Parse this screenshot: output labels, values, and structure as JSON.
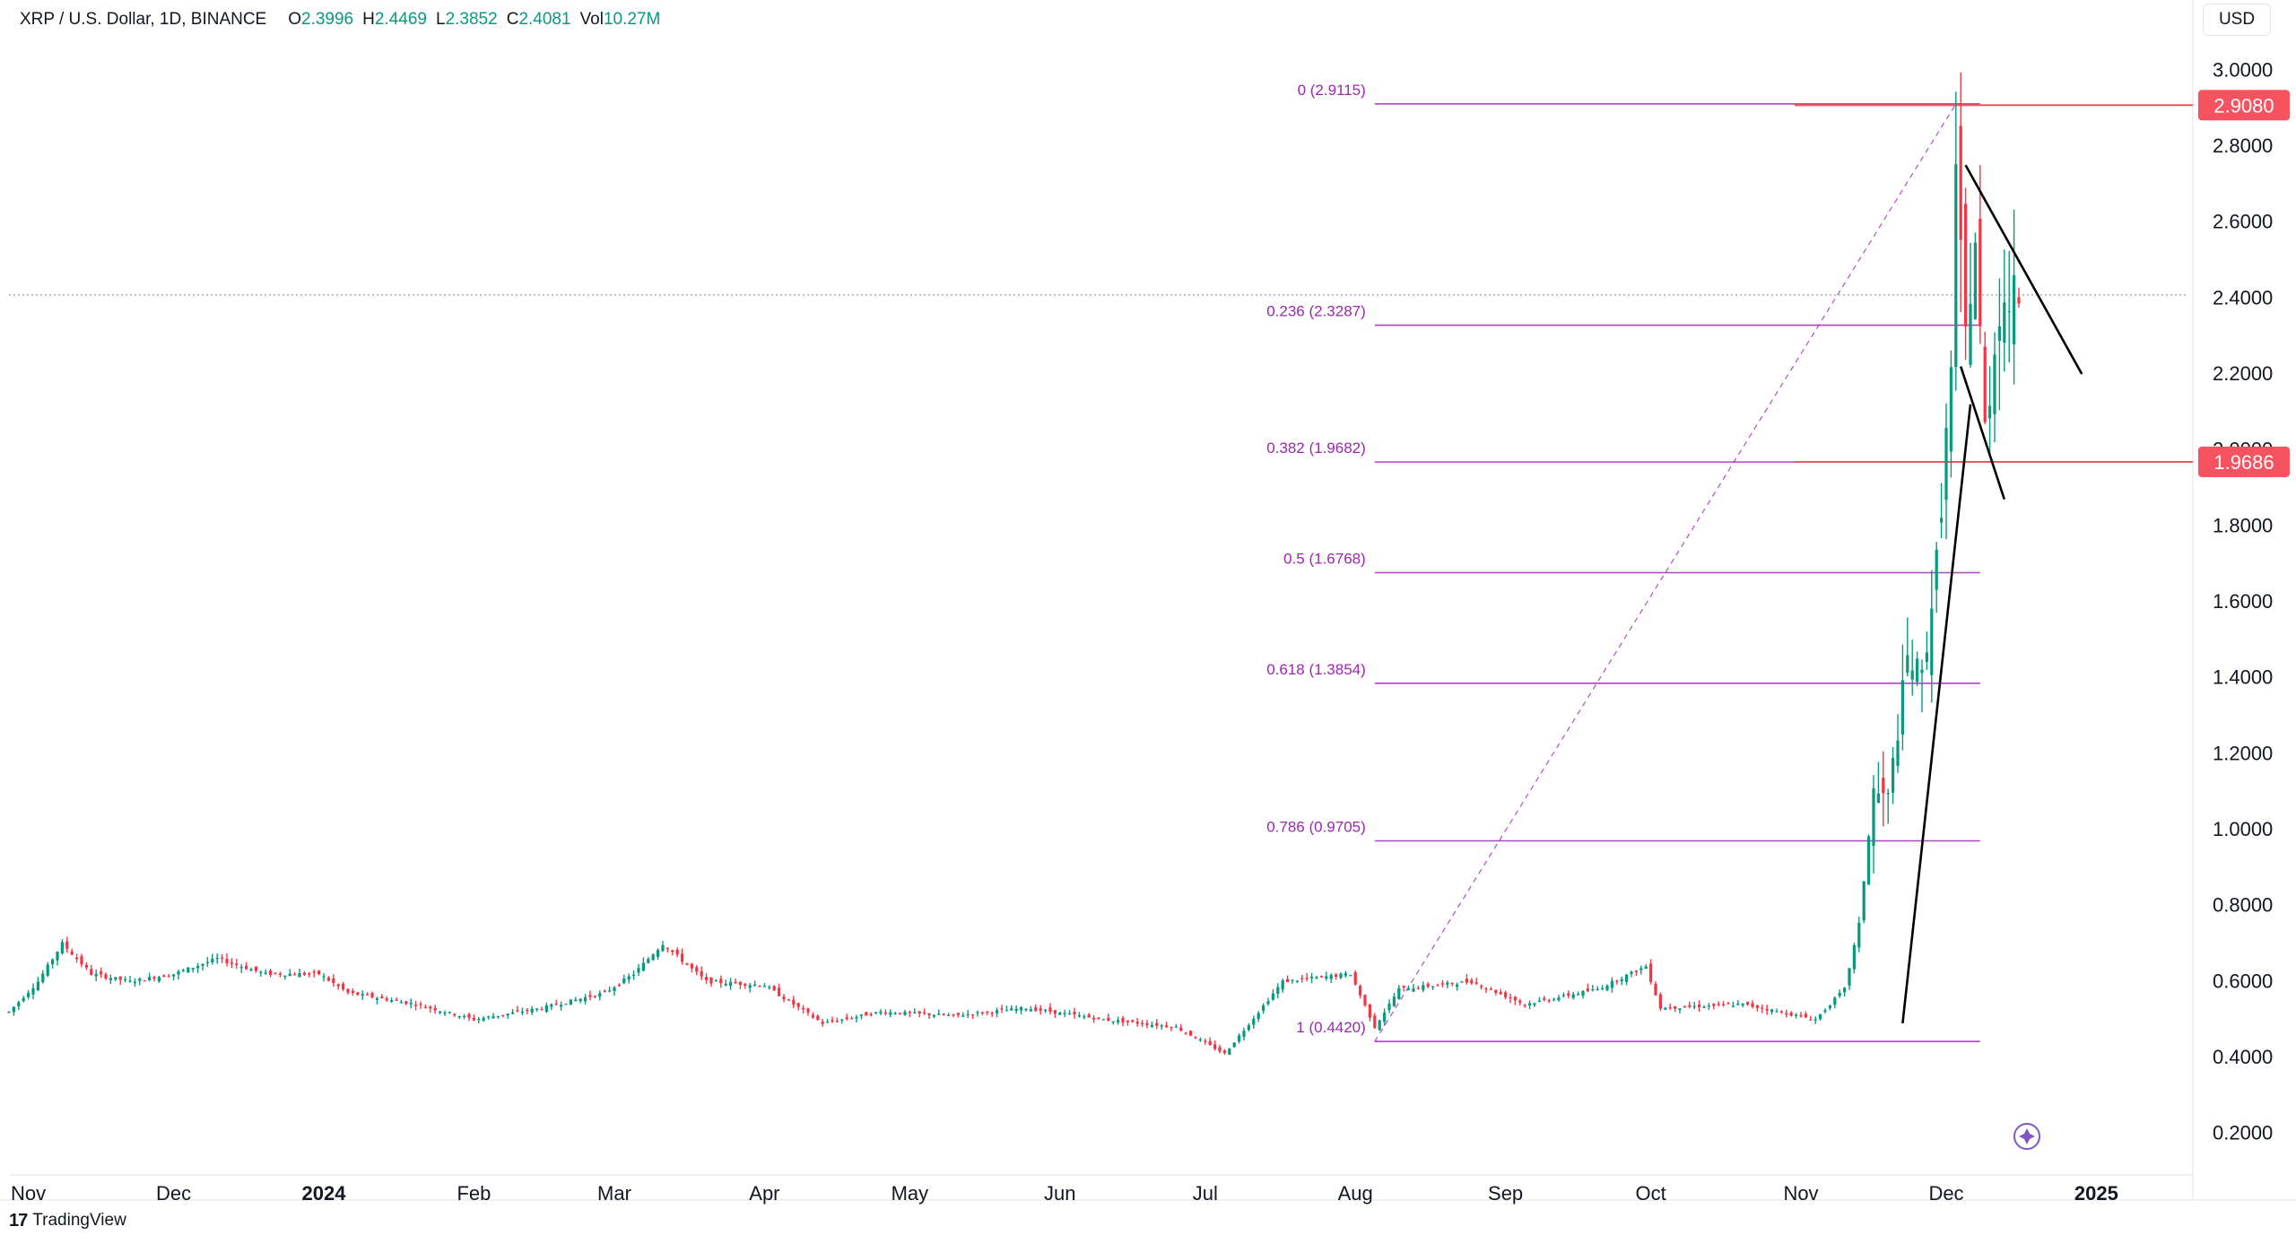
{
  "header": {
    "symbol": "XRP / U.S. Dollar, 1D, BINANCE",
    "open_label": "O",
    "open": "2.3996",
    "high_label": "H",
    "high": "2.4469",
    "low_label": "L",
    "low": "2.3852",
    "close_label": "C",
    "close": "2.4081",
    "vol_label": "Vol",
    "vol": "10.27M"
  },
  "currency_button": "USD",
  "branding": "TradingView",
  "colors": {
    "up": "#089981",
    "down": "#f23645",
    "fib": "#9c27b0",
    "price_line": "#f7525f",
    "trendline": "#000000",
    "axis_text": "#131722"
  },
  "chart_data": {
    "type": "candlestick",
    "title": "XRP / U.S. Dollar, 1D, BINANCE",
    "x_axis": {
      "range": [
        "2023-10-28",
        "2025-01-20"
      ],
      "ticks": [
        {
          "date": "2023-11-01",
          "label": "Nov"
        },
        {
          "date": "2023-12-01",
          "label": "Dec"
        },
        {
          "date": "2024-01-01",
          "label": "2024",
          "bold": true
        },
        {
          "date": "2024-02-01",
          "label": "Feb"
        },
        {
          "date": "2024-03-01",
          "label": "Mar"
        },
        {
          "date": "2024-04-01",
          "label": "Apr"
        },
        {
          "date": "2024-05-01",
          "label": "May"
        },
        {
          "date": "2024-06-01",
          "label": "Jun"
        },
        {
          "date": "2024-07-01",
          "label": "Jul"
        },
        {
          "date": "2024-08-01",
          "label": "Aug"
        },
        {
          "date": "2024-09-01",
          "label": "Sep"
        },
        {
          "date": "2024-10-01",
          "label": "Oct"
        },
        {
          "date": "2024-11-01",
          "label": "Nov"
        },
        {
          "date": "2024-12-01",
          "label": "Dec"
        },
        {
          "date": "2025-01-01",
          "label": "2025",
          "bold": true
        }
      ]
    },
    "y_axis": {
      "range": [
        0.1,
        3.1
      ],
      "ticks": [
        "0.2000",
        "0.4000",
        "0.6000",
        "0.8000",
        "1.0000",
        "1.2000",
        "1.4000",
        "1.6000",
        "1.8000",
        "2.0000",
        "2.2000",
        "2.4000",
        "2.6000",
        "2.8000",
        "3.0000"
      ]
    },
    "series": [
      {
        "name": "XRP / U.S. Dollar",
        "points": [
          {
            "date": "2023-10-28",
            "close": 0.52
          },
          {
            "date": "2023-11-03",
            "close": 0.6
          },
          {
            "date": "2023-11-08",
            "close": 0.7
          },
          {
            "date": "2023-11-14",
            "close": 0.62
          },
          {
            "date": "2023-11-22",
            "close": 0.6
          },
          {
            "date": "2023-12-01",
            "close": 0.62
          },
          {
            "date": "2023-12-10",
            "close": 0.66
          },
          {
            "date": "2023-12-20",
            "close": 0.62
          },
          {
            "date": "2023-12-31",
            "close": 0.62
          },
          {
            "date": "2024-01-06",
            "close": 0.57
          },
          {
            "date": "2024-01-20",
            "close": 0.54
          },
          {
            "date": "2024-02-01",
            "close": 0.5
          },
          {
            "date": "2024-02-15",
            "close": 0.53
          },
          {
            "date": "2024-02-28",
            "close": 0.57
          },
          {
            "date": "2024-03-05",
            "close": 0.62
          },
          {
            "date": "2024-03-11",
            "close": 0.7
          },
          {
            "date": "2024-03-20",
            "close": 0.6
          },
          {
            "date": "2024-04-01",
            "close": 0.59
          },
          {
            "date": "2024-04-13",
            "close": 0.49
          },
          {
            "date": "2024-04-25",
            "close": 0.52
          },
          {
            "date": "2024-05-10",
            "close": 0.51
          },
          {
            "date": "2024-05-25",
            "close": 0.53
          },
          {
            "date": "2024-06-10",
            "close": 0.5
          },
          {
            "date": "2024-06-25",
            "close": 0.48
          },
          {
            "date": "2024-07-05",
            "close": 0.41
          },
          {
            "date": "2024-07-12",
            "close": 0.52
          },
          {
            "date": "2024-07-17",
            "close": 0.6
          },
          {
            "date": "2024-07-31",
            "close": 0.62
          },
          {
            "date": "2024-08-05",
            "close": 0.48
          },
          {
            "date": "2024-08-10",
            "close": 0.58
          },
          {
            "date": "2024-08-25",
            "close": 0.6
          },
          {
            "date": "2024-09-05",
            "close": 0.54
          },
          {
            "date": "2024-09-20",
            "close": 0.58
          },
          {
            "date": "2024-09-30",
            "close": 0.64
          },
          {
            "date": "2024-10-03",
            "close": 0.53
          },
          {
            "date": "2024-10-20",
            "close": 0.54
          },
          {
            "date": "2024-11-04",
            "close": 0.5
          },
          {
            "date": "2024-11-10",
            "close": 0.58
          },
          {
            "date": "2024-11-13",
            "close": 0.75
          },
          {
            "date": "2024-11-16",
            "close": 1.1
          },
          {
            "date": "2024-11-19",
            "close": 1.08
          },
          {
            "date": "2024-11-23",
            "close": 1.45
          },
          {
            "date": "2024-11-26",
            "close": 1.4
          },
          {
            "date": "2024-11-29",
            "close": 1.7
          },
          {
            "date": "2024-12-02",
            "close": 2.2
          },
          {
            "date": "2024-12-03",
            "close": 2.7
          },
          {
            "date": "2024-12-05",
            "close": 2.3
          },
          {
            "date": "2024-12-07",
            "close": 2.55
          },
          {
            "date": "2024-12-09",
            "close": 2.05
          },
          {
            "date": "2024-12-12",
            "close": 2.38
          },
          {
            "date": "2024-12-15",
            "close": 2.4
          },
          {
            "date": "2024-12-16",
            "close": 2.41
          }
        ]
      }
    ],
    "last_price": {
      "value": 2.4081,
      "line": "dotted"
    },
    "price_labels": [
      {
        "value": 2.908,
        "label": "2.9080"
      },
      {
        "value": 1.9686,
        "label": "1.9686"
      }
    ],
    "fibonacci": {
      "anchor_high": {
        "date": "2024-12-03",
        "value": 2.9115
      },
      "anchor_low": {
        "date": "2024-08-05",
        "value": 0.442
      },
      "levels": [
        {
          "ratio": "0",
          "value": 2.9115,
          "label": "0 (2.9115)"
        },
        {
          "ratio": "0.236",
          "value": 2.3287,
          "label": "0.236 (2.3287)"
        },
        {
          "ratio": "0.382",
          "value": 1.9682,
          "label": "0.382 (1.9682)"
        },
        {
          "ratio": "0.5",
          "value": 1.6768,
          "label": "0.5 (1.6768)"
        },
        {
          "ratio": "0.618",
          "value": 1.3854,
          "label": "0.618 (1.3854)"
        },
        {
          "ratio": "0.786",
          "value": 0.9705,
          "label": "0.786 (0.9705)"
        },
        {
          "ratio": "1",
          "value": 0.442,
          "label": "1 (0.4420)"
        }
      ],
      "end_date": "2024-12-08"
    },
    "trendlines": [
      {
        "from": {
          "date": "2024-11-22",
          "value": 0.49
        },
        "to": {
          "date": "2024-12-06",
          "value": 2.12
        }
      },
      {
        "from": {
          "date": "2024-12-05",
          "value": 2.75
        },
        "to": {
          "date": "2024-12-29",
          "value": 2.2
        }
      },
      {
        "from": {
          "date": "2024-12-04",
          "value": 2.22
        },
        "to": {
          "date": "2024-12-13",
          "value": 1.87
        }
      }
    ],
    "grid": false
  }
}
